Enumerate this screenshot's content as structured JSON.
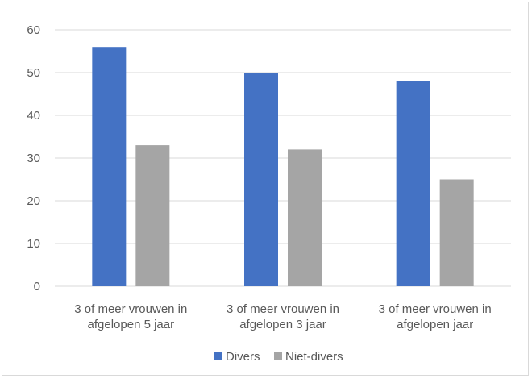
{
  "chart_data": {
    "type": "bar",
    "categories": [
      [
        "3 of meer vrouwen in",
        "afgelopen 5 jaar"
      ],
      [
        "3 of meer vrouwen in",
        "afgelopen 3 jaar"
      ],
      [
        "3 of meer vrouwen in",
        "afgelopen jaar"
      ]
    ],
    "series": [
      {
        "name": "Divers",
        "values": [
          56,
          50,
          48
        ],
        "color": "#4472c4"
      },
      {
        "name": "Niet-divers",
        "values": [
          33,
          32,
          25
        ],
        "color": "#a5a5a5"
      }
    ],
    "ylim": [
      0,
      60
    ],
    "yticks": [
      0,
      10,
      20,
      30,
      40,
      50,
      60
    ],
    "grid": true,
    "legend_position": "bottom",
    "gridline_color": "#d9d9d9"
  }
}
